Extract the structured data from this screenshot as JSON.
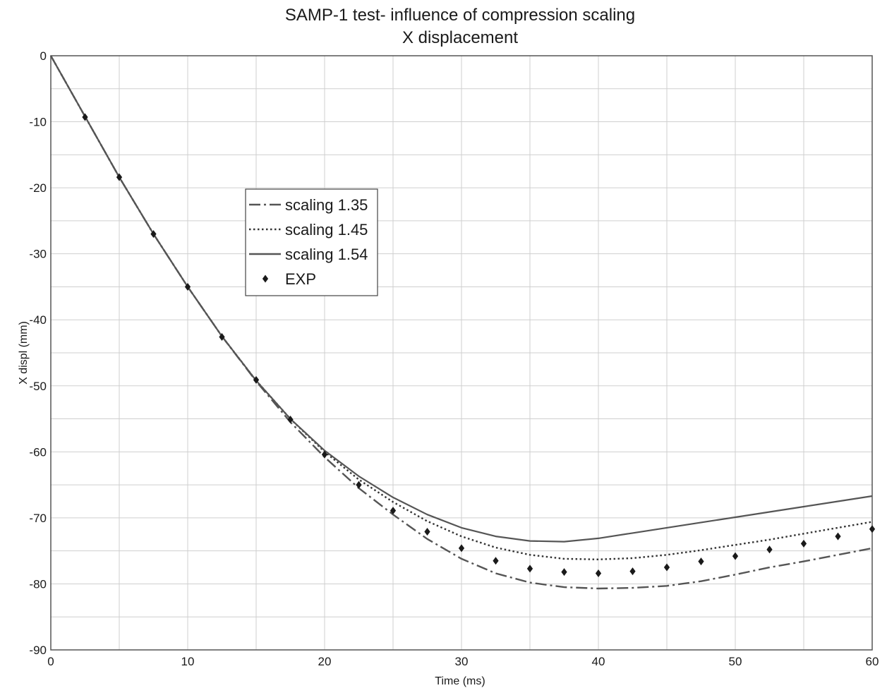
{
  "chart_data": {
    "type": "line",
    "title": "SAMP-1 test- influence of compression scaling",
    "subtitle": "X displacement",
    "xlabel": "Time (ms)",
    "ylabel": "X displ (mm)",
    "xlim": [
      0,
      60
    ],
    "ylim": [
      -90,
      0
    ],
    "x_ticks": [
      0,
      10,
      20,
      30,
      40,
      50,
      60
    ],
    "y_ticks": [
      0,
      -10,
      -20,
      -30,
      -40,
      -50,
      -60,
      -70,
      -80,
      -90
    ],
    "x_tick_labels": [
      "0",
      "10",
      "20",
      "30",
      "40",
      "50",
      "60"
    ],
    "y_tick_labels": [
      "0",
      "-10",
      "-20",
      "-30",
      "-40",
      "-50",
      "-60",
      "-70",
      "-80",
      "-90"
    ],
    "grid": true,
    "legend_position": "upper-left-center",
    "series": [
      {
        "name": "scaling 1.35",
        "style": "dashdot",
        "color": "#555555",
        "x": [
          0,
          2.5,
          5,
          7.5,
          10,
          12.5,
          15,
          17.5,
          20,
          22.5,
          25,
          27.5,
          30,
          32.5,
          35,
          37.5,
          40,
          42.5,
          45,
          47.5,
          50,
          52.5,
          55,
          57.5,
          60
        ],
        "y": [
          0,
          -9.2,
          -18.4,
          -27,
          -35,
          -42.5,
          -49.3,
          -55.5,
          -60.8,
          -65.5,
          -69.5,
          -73.2,
          -76.2,
          -78.4,
          -79.8,
          -80.5,
          -80.7,
          -80.6,
          -80.3,
          -79.6,
          -78.6,
          -77.5,
          -76.6,
          -75.6,
          -74.6
        ]
      },
      {
        "name": "scaling 1.45",
        "style": "dotted",
        "color": "#333333",
        "x": [
          0,
          2.5,
          5,
          7.5,
          10,
          12.5,
          15,
          17.5,
          20,
          22.5,
          25,
          27.5,
          30,
          32.5,
          35,
          37.5,
          40,
          42.5,
          45,
          47.5,
          50,
          52.5,
          55,
          57.5,
          60
        ],
        "y": [
          0,
          -9.2,
          -18.4,
          -27,
          -35,
          -42.5,
          -49.2,
          -55,
          -60,
          -64.2,
          -67.6,
          -70.5,
          -72.8,
          -74.5,
          -75.6,
          -76.2,
          -76.3,
          -76.1,
          -75.6,
          -74.9,
          -74.1,
          -73.3,
          -72.4,
          -71.5,
          -70.6
        ]
      },
      {
        "name": "scaling 1.54",
        "style": "solid",
        "color": "#555555",
        "x": [
          0,
          2.5,
          5,
          7.5,
          10,
          12.5,
          15,
          17.5,
          20,
          22.5,
          25,
          27.5,
          30,
          32.5,
          35,
          37.5,
          40,
          42.5,
          45,
          47.5,
          50,
          52.5,
          55,
          57.5,
          60
        ],
        "y": [
          0,
          -9.2,
          -18.4,
          -27,
          -35,
          -42.5,
          -49.2,
          -55,
          -59.8,
          -63.7,
          -66.9,
          -69.5,
          -71.5,
          -72.8,
          -73.5,
          -73.6,
          -73.1,
          -72.3,
          -71.5,
          -70.7,
          -69.9,
          -69.1,
          -68.3,
          -67.5,
          -66.7
        ]
      },
      {
        "name": "EXP",
        "style": "markers",
        "color": "#1a1a1a",
        "x": [
          2.5,
          5,
          7.5,
          10,
          12.5,
          15,
          17.5,
          20,
          22.5,
          25,
          27.5,
          30,
          32.5,
          35,
          37.5,
          40,
          42.5,
          45,
          47.5,
          50,
          52.5,
          55,
          57.5,
          60
        ],
        "y": [
          -9.3,
          -18.4,
          -27,
          -35,
          -42.6,
          -49.1,
          -55.1,
          -60.4,
          -65,
          -68.9,
          -72.1,
          -74.6,
          -76.5,
          -77.7,
          -78.2,
          -78.4,
          -78.1,
          -77.5,
          -76.6,
          -75.8,
          -74.8,
          -73.9,
          -72.8,
          -71.7
        ]
      }
    ]
  }
}
